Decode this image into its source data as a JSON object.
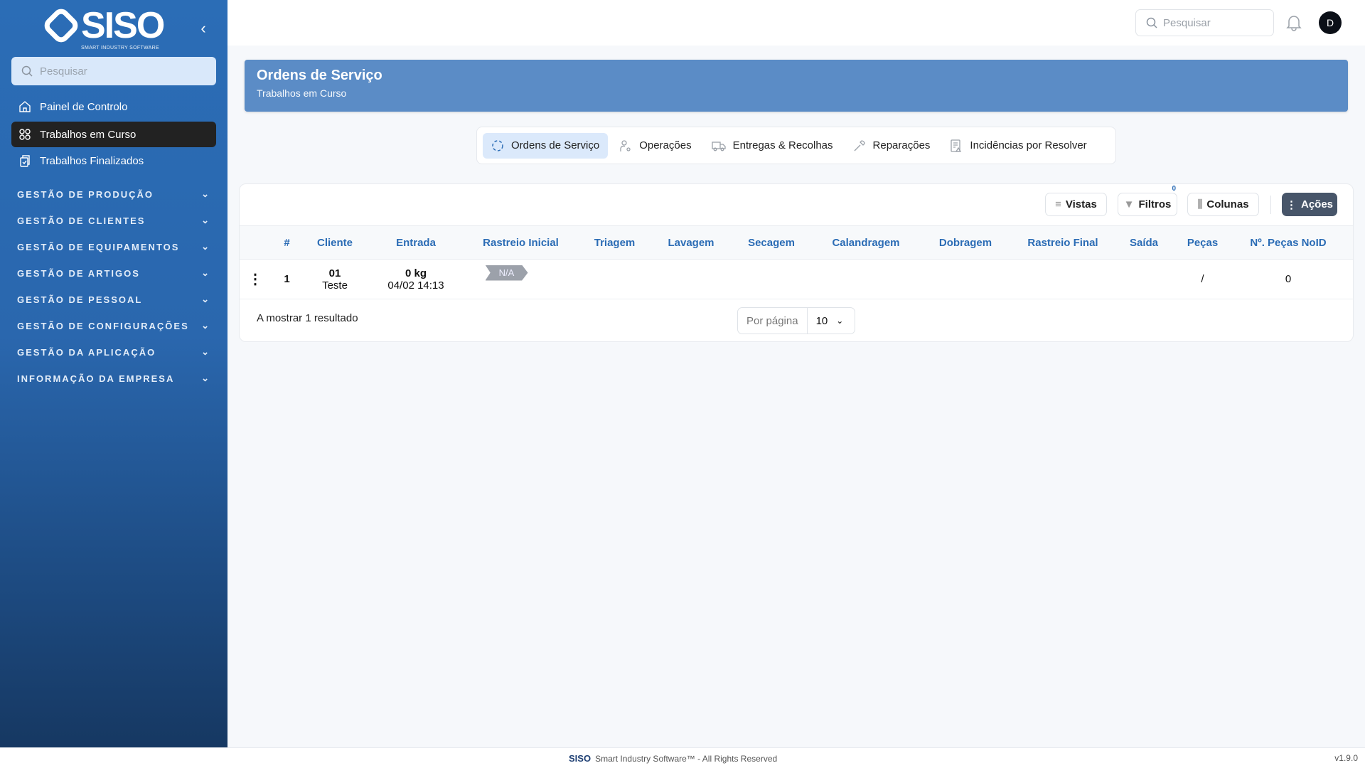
{
  "sidebar": {
    "logo_text": "SISO",
    "logo_tagline": "SMART INDUSTRY SOFTWARE",
    "search_placeholder": "Pesquisar",
    "items": [
      {
        "label": "Painel de Controlo",
        "icon": "home-icon"
      },
      {
        "label": "Trabalhos em Curso",
        "icon": "grid-icon",
        "active": true
      },
      {
        "label": "Trabalhos Finalizados",
        "icon": "clipboard-icon"
      }
    ],
    "sections": [
      "GESTÃO DE PRODUÇÃO",
      "GESTÃO DE CLIENTES",
      "GESTÃO DE EQUIPAMENTOS",
      "GESTÃO DE ARTIGOS",
      "GESTÃO DE PESSOAL",
      "GESTÃO DE CONFIGURAÇÕES",
      "GESTÃO DA APLICAÇÃO",
      "INFORMAÇÃO DA EMPRESA"
    ]
  },
  "topbar": {
    "search_placeholder": "Pesquisar",
    "avatar_initial": "D"
  },
  "header": {
    "title": "Ordens de Serviço",
    "subtitle": "Trabalhos em Curso"
  },
  "tabs": [
    {
      "label": "Ordens de Serviço",
      "active": true
    },
    {
      "label": "Operações"
    },
    {
      "label": "Entregas & Recolhas"
    },
    {
      "label": "Reparações"
    },
    {
      "label": "Incidências por Resolver"
    }
  ],
  "toolbar": {
    "views": "Vistas",
    "filters": "Filtros",
    "filters_count": "0",
    "columns": "Colunas",
    "actions": "Ações"
  },
  "table": {
    "columns": [
      "#",
      "Cliente",
      "Entrada",
      "Rastreio Inicial",
      "Triagem",
      "Lavagem",
      "Secagem",
      "Calandragem",
      "Dobragem",
      "Rastreio Final",
      "Saída",
      "Peças",
      "Nº. Peças NoID"
    ],
    "rows": [
      {
        "num": "1",
        "client_code": "01",
        "client_name": "Teste",
        "weight": "0 kg",
        "date": "04/02 14:13",
        "rastreio_inicial": "N/A",
        "pecas": "/",
        "noid": "0"
      }
    ]
  },
  "pagination": {
    "summary": "A mostrar 1 resultado",
    "per_page_label": "Por página",
    "per_page": "10"
  },
  "footer": {
    "brand": "SISO",
    "text": "Smart Industry Software™ - All Rights Reserved",
    "version": "v1.9.0"
  },
  "colors": {
    "sidebar": "#2b6db6",
    "banner": "#5b8cc6",
    "accent": "#2b6cb5",
    "active_nav": "#222222",
    "actions_button": "#475569"
  }
}
